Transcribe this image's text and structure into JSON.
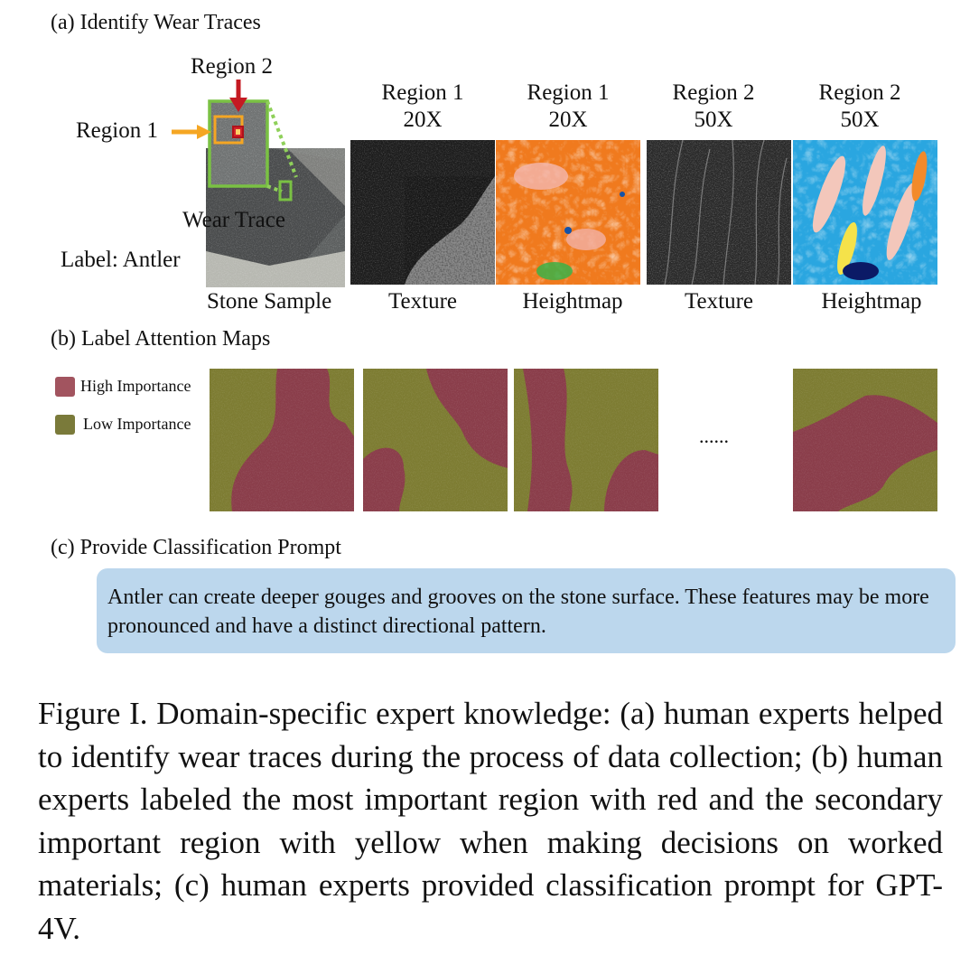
{
  "section_a": {
    "title": "(a) Identify Wear Traces",
    "region2_label": "Region 2",
    "region1_label": "Region 1",
    "wear_trace_label": "Wear Trace",
    "label_text": "Label: Antler",
    "sample_caption": "Stone Sample",
    "columns": [
      {
        "line1": "Region 1",
        "line2": "20X",
        "caption": "Texture"
      },
      {
        "line1": "Region 1",
        "line2": "20X",
        "caption": "Heightmap"
      },
      {
        "line1": "Region 2",
        "line2": "50X",
        "caption": "Texture"
      },
      {
        "line1": "Region 2",
        "line2": "50X",
        "caption": "Heightmap"
      }
    ]
  },
  "section_b": {
    "title": "(b) Label Attention Maps",
    "legend_high": "High Importance",
    "legend_low": "Low Importance",
    "ellipsis": "......",
    "colors": {
      "high": "#8a3f4b",
      "low": "#7a7a33"
    }
  },
  "section_c": {
    "title": "(c) Provide Classification Prompt",
    "prompt": "Antler can create deeper gouges and grooves on the stone surface. These features may be more pronounced and have a distinct directional pattern."
  },
  "caption": "Figure I. Domain-specific expert knowledge: (a) human experts helped to identify wear traces during the process of data collec­tion; (b) human experts labeled the most important region with red and the secondary important region with yellow when making decisions on worked materials; (c) human experts provided classi­fication prompt for GPT-4V."
}
